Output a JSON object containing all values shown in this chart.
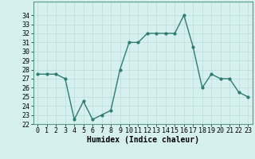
{
  "x": [
    0,
    1,
    2,
    3,
    4,
    5,
    6,
    7,
    8,
    9,
    10,
    11,
    12,
    13,
    14,
    15,
    16,
    17,
    18,
    19,
    20,
    21,
    22,
    23
  ],
  "y": [
    27.5,
    27.5,
    27.5,
    27.0,
    22.5,
    24.5,
    22.5,
    23.0,
    23.5,
    28.0,
    31.0,
    31.0,
    32.0,
    32.0,
    32.0,
    32.0,
    34.0,
    30.5,
    26.0,
    27.5,
    27.0,
    27.0,
    25.5,
    25.0
  ],
  "line_color": "#2e7d6e",
  "bg_color": "#d6f0ef",
  "grid_color": "#b8ddd8",
  "xlabel": "Humidex (Indice chaleur)",
  "xlabel_fontsize": 7,
  "tick_fontsize": 6,
  "ylim": [
    22,
    35
  ],
  "yticks": [
    22,
    23,
    24,
    25,
    26,
    27,
    28,
    29,
    30,
    31,
    32,
    33,
    34
  ],
  "xticks": [
    0,
    1,
    2,
    3,
    4,
    5,
    6,
    7,
    8,
    9,
    10,
    11,
    12,
    13,
    14,
    15,
    16,
    17,
    18,
    19,
    20,
    21,
    22,
    23
  ],
  "marker_size": 2.0,
  "line_width": 1.0
}
